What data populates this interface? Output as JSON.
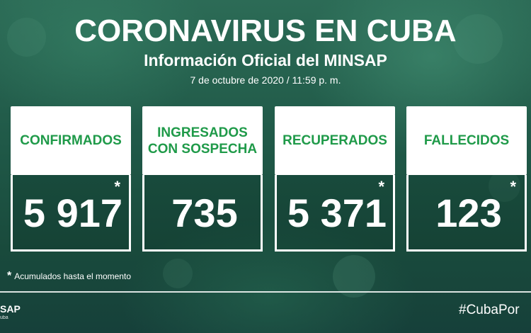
{
  "header": {
    "title": "CORONAVIRUS EN CUBA",
    "subtitle": "Información Oficial del MINSAP",
    "date": "7 de octubre de 2020 / 11:59 p. m."
  },
  "cards": [
    {
      "label": "CONFIRMADOS",
      "value": "5 917",
      "asterisk": "*"
    },
    {
      "label_lines": [
        "INGRESADOS",
        "CON SOSPECHA"
      ],
      "value": "735"
    },
    {
      "label": "RECUPERADOS",
      "value": "5 371",
      "asterisk": "*"
    },
    {
      "label": "FALLECIDOS",
      "value": "123",
      "asterisk": "*"
    }
  ],
  "footnote": {
    "star": "*",
    "text": "Acumulados hasta el momento"
  },
  "footer": {
    "brand": "SAP",
    "brand_sub": "uba",
    "hashtag": "#CubaPor"
  },
  "colors": {
    "label_green": "#1f9a49",
    "background": "#1f5847"
  }
}
